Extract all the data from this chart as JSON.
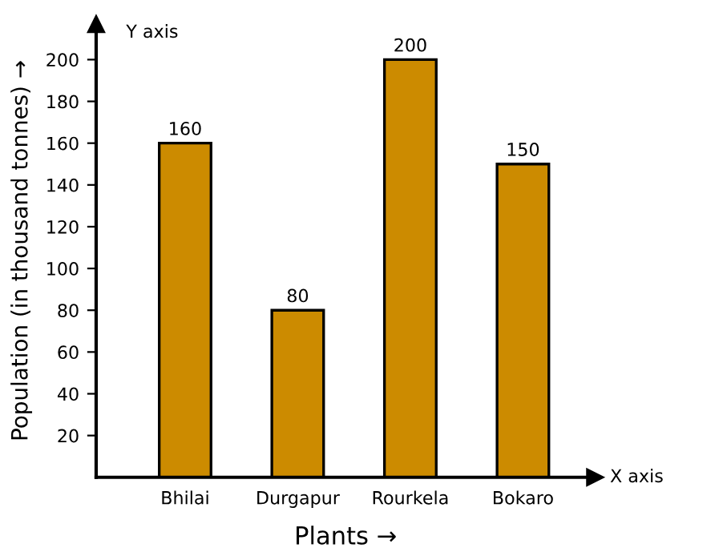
{
  "chart_data": {
    "type": "bar",
    "categories": [
      "Bhilai",
      "Durgapur",
      "Rourkela",
      "Bokaro"
    ],
    "values": [
      160,
      80,
      200,
      150
    ],
    "color": "#cc8b00",
    "xlabel": "Plants →",
    "ylabel": "Population (in thousand tonnes) →",
    "annotations": [
      "Y axis",
      "X axis"
    ],
    "ylim": [
      0,
      217
    ],
    "yticks": [
      20,
      40,
      60,
      80,
      100,
      120,
      140,
      160,
      180,
      200
    ],
    "data_labels": true,
    "grid": false,
    "legend": false
  }
}
